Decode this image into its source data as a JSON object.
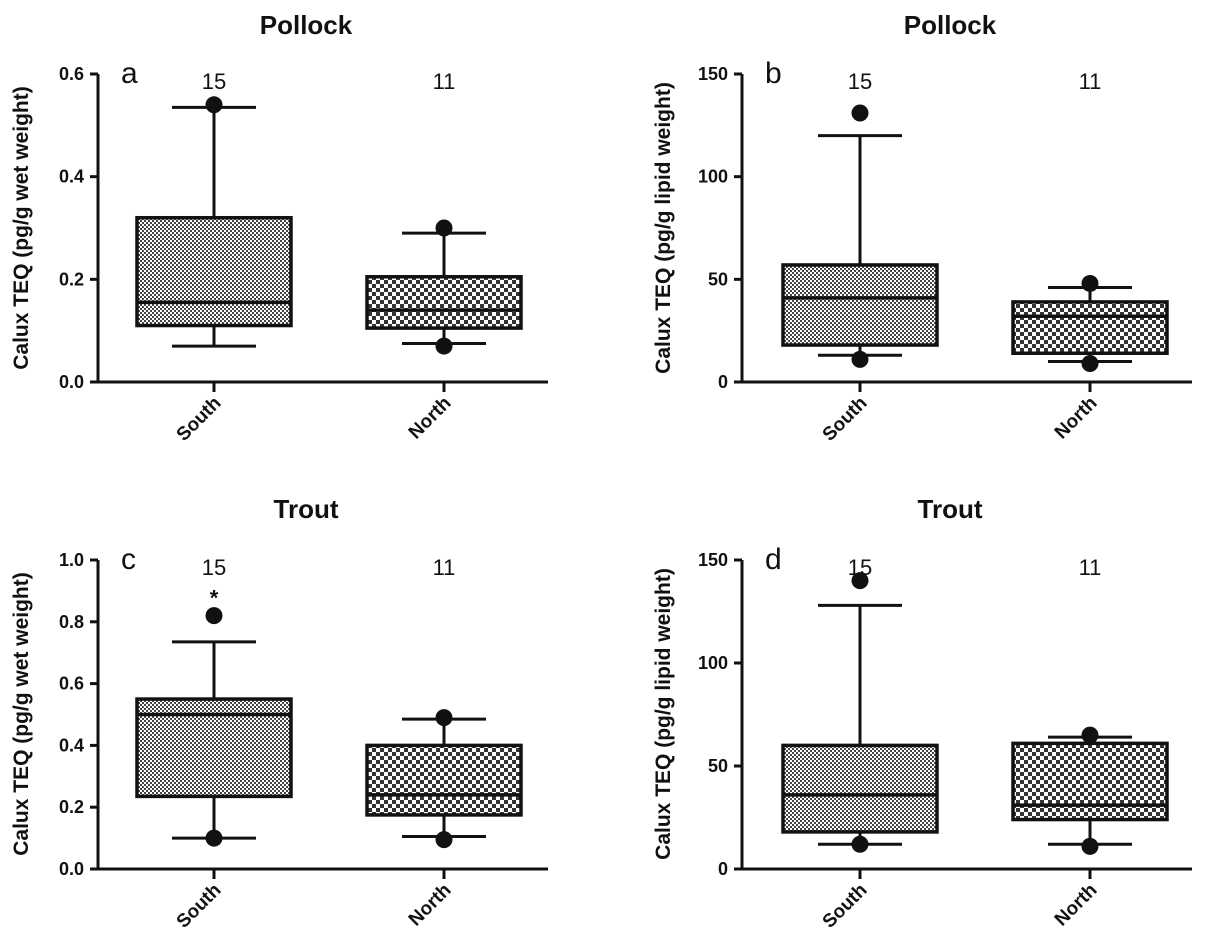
{
  "chart_data": [
    {
      "type": "box",
      "panel": "a",
      "title": "Pollock",
      "ylabel": "Calux TEQ (pg/g wet weight)",
      "ylim": [
        0,
        0.6
      ],
      "yticks": [
        0.0,
        0.2,
        0.4,
        0.6
      ],
      "ytick_labels": [
        "0.0",
        "0.2",
        "0.4",
        "0.6"
      ],
      "categories": [
        "South",
        "North"
      ],
      "n": [
        "15",
        "11"
      ],
      "boxes": [
        {
          "category": "South",
          "whisker_low": 0.07,
          "q1": 0.11,
          "median": 0.155,
          "q3": 0.32,
          "whisker_high": 0.535,
          "outliers": [
            0.54
          ],
          "pattern": "fine",
          "sig": ""
        },
        {
          "category": "North",
          "whisker_low": 0.075,
          "q1": 0.105,
          "median": 0.14,
          "q3": 0.205,
          "whisker_high": 0.29,
          "outliers": [
            0.3,
            0.07
          ],
          "pattern": "coarse",
          "sig": ""
        }
      ]
    },
    {
      "type": "box",
      "panel": "b",
      "title": "Pollock",
      "ylabel": "Calux TEQ (pg/g lipid weight)",
      "ylim": [
        0,
        150
      ],
      "yticks": [
        0,
        50,
        100,
        150
      ],
      "ytick_labels": [
        "0",
        "50",
        "100",
        "150"
      ],
      "categories": [
        "South",
        "North"
      ],
      "n": [
        "15",
        "11"
      ],
      "boxes": [
        {
          "category": "South",
          "whisker_low": 13,
          "q1": 18,
          "median": 41,
          "q3": 57,
          "whisker_high": 120,
          "outliers": [
            131,
            11
          ],
          "pattern": "fine",
          "sig": ""
        },
        {
          "category": "North",
          "whisker_low": 10,
          "q1": 14,
          "median": 32,
          "q3": 39,
          "whisker_high": 46,
          "outliers": [
            48,
            9
          ],
          "pattern": "coarse",
          "sig": ""
        }
      ]
    },
    {
      "type": "box",
      "panel": "c",
      "title": "Trout",
      "ylabel": "Calux TEQ (pg/g wet weight)",
      "ylim": [
        0,
        1.0
      ],
      "yticks": [
        0.0,
        0.2,
        0.4,
        0.6,
        0.8,
        1.0
      ],
      "ytick_labels": [
        "0.0",
        "0.2",
        "0.4",
        "0.6",
        "0.8",
        "1.0"
      ],
      "categories": [
        "South",
        "North"
      ],
      "n": [
        "15",
        "11"
      ],
      "boxes": [
        {
          "category": "South",
          "whisker_low": 0.1,
          "q1": 0.235,
          "median": 0.5,
          "q3": 0.55,
          "whisker_high": 0.735,
          "outliers": [
            0.82,
            0.1
          ],
          "pattern": "fine",
          "sig": "*"
        },
        {
          "category": "North",
          "whisker_low": 0.105,
          "q1": 0.175,
          "median": 0.24,
          "q3": 0.4,
          "whisker_high": 0.485,
          "outliers": [
            0.49,
            0.095
          ],
          "pattern": "coarse",
          "sig": ""
        }
      ]
    },
    {
      "type": "box",
      "panel": "d",
      "title": "Trout",
      "ylabel": "Calux TEQ (pg/g lipid weight)",
      "ylim": [
        0,
        150
      ],
      "yticks": [
        0,
        50,
        100,
        150
      ],
      "ytick_labels": [
        "0",
        "50",
        "100",
        "150"
      ],
      "categories": [
        "South",
        "North"
      ],
      "n": [
        "15",
        "11"
      ],
      "boxes": [
        {
          "category": "South",
          "whisker_low": 12,
          "q1": 18,
          "median": 36,
          "q3": 60,
          "whisker_high": 128,
          "outliers": [
            140,
            12
          ],
          "pattern": "fine",
          "sig": ""
        },
        {
          "category": "North",
          "whisker_low": 12,
          "q1": 24,
          "median": 31,
          "q3": 61,
          "whisker_high": 64,
          "outliers": [
            65,
            11
          ],
          "pattern": "coarse",
          "sig": ""
        }
      ]
    }
  ]
}
